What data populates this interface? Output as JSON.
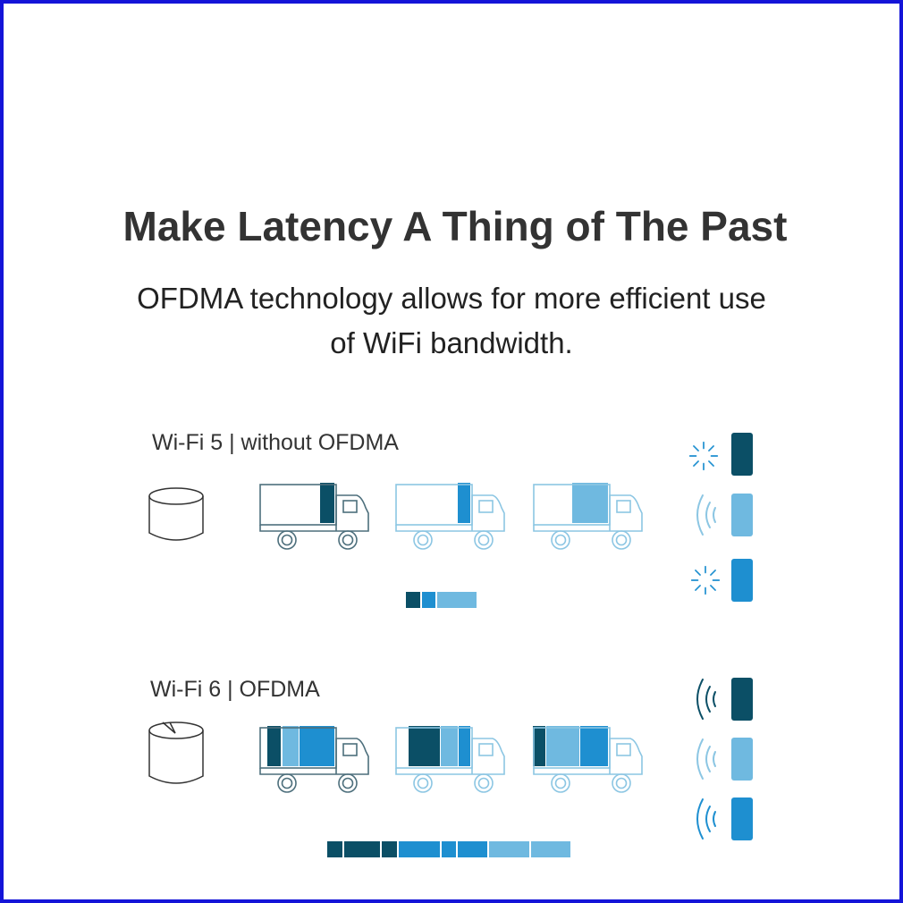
{
  "header": {
    "title": "Make Latency A Thing of The Past",
    "subtitle": [
      "OFDMA technology allows for more efficient use",
      "of WiFi bandwidth."
    ]
  },
  "sections": [
    {
      "label": "Wi-Fi 5 | without OFDMA"
    },
    {
      "label": "Wi-Fi 6 | OFDMA"
    }
  ]
}
